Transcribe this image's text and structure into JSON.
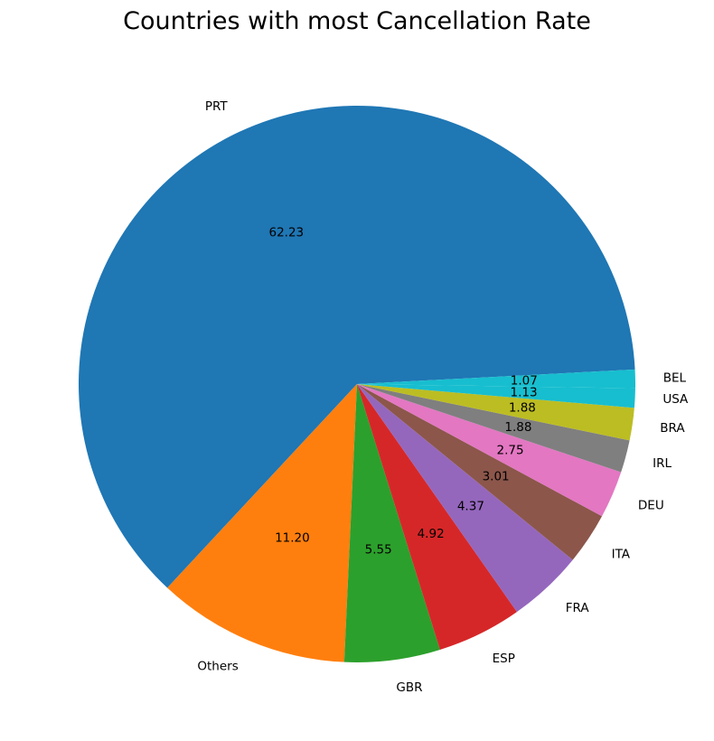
{
  "chart_data": {
    "type": "pie",
    "title": "Countries with most Cancellation Rate",
    "value_format": "%.2f",
    "start_angle_deg": 3,
    "direction": "counterclockwise",
    "slices": [
      {
        "label": "PRT",
        "value": 62.23,
        "color": "#1f77b4"
      },
      {
        "label": "Others",
        "value": 11.2,
        "color": "#ff7f0e"
      },
      {
        "label": "GBR",
        "value": 5.55,
        "color": "#2ca02c"
      },
      {
        "label": "ESP",
        "value": 4.92,
        "color": "#d62728"
      },
      {
        "label": "FRA",
        "value": 4.37,
        "color": "#9467bd"
      },
      {
        "label": "ITA",
        "value": 3.01,
        "color": "#8c564b"
      },
      {
        "label": "DEU",
        "value": 2.75,
        "color": "#e377c2"
      },
      {
        "label": "IRL",
        "value": 1.88,
        "color": "#7f7f7f"
      },
      {
        "label": "BRA",
        "value": 1.88,
        "color": "#bcbd22"
      },
      {
        "label": "USA",
        "value": 1.13,
        "color": "#17becf"
      },
      {
        "label": "BEL",
        "value": 1.07,
        "color": "#17becf"
      }
    ]
  }
}
